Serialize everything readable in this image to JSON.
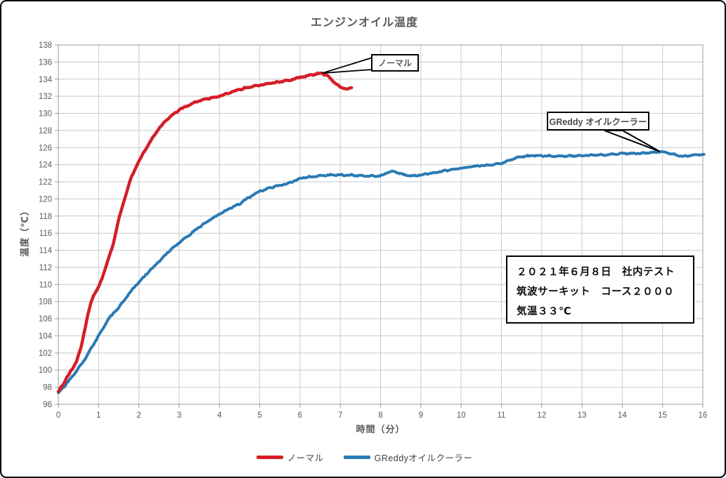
{
  "chart": {
    "title": "エンジンオイル温度",
    "x_axis_label": "時間（分）",
    "y_axis_label": "温度（℃）"
  },
  "chart_data": {
    "type": "line",
    "title": "エンジンオイル温度",
    "xlabel": "時間（分）",
    "ylabel": "温度（℃）",
    "xlim": [
      0,
      16
    ],
    "ylim": [
      96,
      138
    ],
    "x_tick_step": 1,
    "y_tick_step": 2,
    "grid": true,
    "legend_position": "bottom",
    "series": [
      {
        "name": "ノーマル",
        "color": "#d41e26",
        "points": [
          [
            0,
            97.5
          ],
          [
            0.15,
            98.6
          ],
          [
            0.3,
            99.8
          ],
          [
            0.45,
            101.0
          ],
          [
            0.55,
            102.4
          ],
          [
            0.65,
            104.6
          ],
          [
            0.75,
            106.8
          ],
          [
            0.85,
            108.5
          ],
          [
            1.0,
            109.7
          ],
          [
            1.1,
            110.9
          ],
          [
            1.2,
            112.4
          ],
          [
            1.35,
            114.5
          ],
          [
            1.5,
            117.6
          ],
          [
            1.65,
            120.1
          ],
          [
            1.8,
            122.4
          ],
          [
            2.0,
            124.4
          ],
          [
            2.2,
            126.1
          ],
          [
            2.4,
            127.6
          ],
          [
            2.6,
            128.8
          ],
          [
            2.8,
            129.7
          ],
          [
            3.0,
            130.4
          ],
          [
            3.2,
            130.9
          ],
          [
            3.4,
            131.3
          ],
          [
            3.6,
            131.6
          ],
          [
            3.8,
            131.8
          ],
          [
            4.0,
            132.0
          ],
          [
            4.25,
            132.4
          ],
          [
            4.5,
            132.8
          ],
          [
            4.75,
            133.1
          ],
          [
            5.0,
            133.3
          ],
          [
            5.25,
            133.5
          ],
          [
            5.5,
            133.7
          ],
          [
            5.75,
            133.9
          ],
          [
            6.0,
            134.2
          ],
          [
            6.2,
            134.4
          ],
          [
            6.4,
            134.6
          ],
          [
            6.55,
            134.7
          ],
          [
            6.7,
            134.3
          ],
          [
            6.85,
            133.6
          ],
          [
            7.0,
            133.1
          ],
          [
            7.1,
            132.9
          ],
          [
            7.2,
            132.9
          ],
          [
            7.3,
            133.0
          ]
        ]
      },
      {
        "name": "GReddyオイルクーラー",
        "color": "#2a7ab5",
        "points": [
          [
            0,
            97.3
          ],
          [
            0.2,
            98.4
          ],
          [
            0.4,
            99.6
          ],
          [
            0.6,
            100.8
          ],
          [
            0.8,
            102.4
          ],
          [
            1.0,
            104.0
          ],
          [
            1.25,
            106.0
          ],
          [
            1.5,
            107.3
          ],
          [
            1.75,
            108.9
          ],
          [
            2.0,
            110.3
          ],
          [
            2.25,
            111.5
          ],
          [
            2.5,
            112.7
          ],
          [
            2.75,
            113.9
          ],
          [
            3.0,
            114.9
          ],
          [
            3.25,
            115.8
          ],
          [
            3.5,
            116.7
          ],
          [
            3.75,
            117.5
          ],
          [
            4.0,
            118.2
          ],
          [
            4.25,
            118.9
          ],
          [
            4.5,
            119.4
          ],
          [
            4.6,
            119.8
          ],
          [
            4.75,
            120.2
          ],
          [
            5.0,
            120.9
          ],
          [
            5.25,
            121.3
          ],
          [
            5.5,
            121.6
          ],
          [
            5.75,
            121.9
          ],
          [
            6.0,
            122.4
          ],
          [
            6.25,
            122.6
          ],
          [
            6.5,
            122.7
          ],
          [
            6.75,
            122.8
          ],
          [
            7.0,
            122.8
          ],
          [
            7.25,
            122.8
          ],
          [
            7.5,
            122.7
          ],
          [
            7.75,
            122.7
          ],
          [
            8.0,
            122.7
          ],
          [
            8.15,
            123.0
          ],
          [
            8.3,
            123.3
          ],
          [
            8.45,
            123.0
          ],
          [
            8.6,
            122.8
          ],
          [
            8.75,
            122.7
          ],
          [
            9.0,
            122.8
          ],
          [
            9.25,
            123.0
          ],
          [
            9.5,
            123.2
          ],
          [
            9.75,
            123.4
          ],
          [
            10.0,
            123.6
          ],
          [
            10.25,
            123.8
          ],
          [
            10.5,
            123.9
          ],
          [
            10.75,
            124.0
          ],
          [
            11.0,
            124.2
          ],
          [
            11.2,
            124.5
          ],
          [
            11.4,
            124.9
          ],
          [
            11.6,
            125.0
          ],
          [
            11.8,
            125.05
          ],
          [
            12.0,
            125.05
          ],
          [
            12.5,
            125.0
          ],
          [
            13.0,
            125.05
          ],
          [
            13.5,
            125.15
          ],
          [
            14.0,
            125.3
          ],
          [
            14.5,
            125.35
          ],
          [
            14.75,
            125.45
          ],
          [
            15.0,
            125.5
          ],
          [
            15.2,
            125.3
          ],
          [
            15.5,
            125.0
          ],
          [
            15.75,
            125.1
          ],
          [
            16.05,
            125.2
          ]
        ]
      }
    ]
  },
  "annotations": {
    "normal_callout": {
      "label": "ノーマル",
      "target_x": 6.55,
      "target_y": 134.7
    },
    "greddy_callout": {
      "label": "GReddy オイルクーラー",
      "target_x": 14.93,
      "target_y": 125.55
    }
  },
  "info_box": {
    "lines": [
      "２０２１年６月８日　社内テスト",
      "筑波サーキット　コース２０００",
      "気温３３℃"
    ]
  },
  "legend": {
    "items": [
      {
        "label": "ノーマル",
        "color": "#d41e26"
      },
      {
        "label": "GReddyオイルクーラー",
        "color": "#2a7ab5"
      }
    ]
  },
  "colors": {
    "grid": "#c9c9c9",
    "axis": "#9b9b9b",
    "tick_text": "#595959"
  }
}
